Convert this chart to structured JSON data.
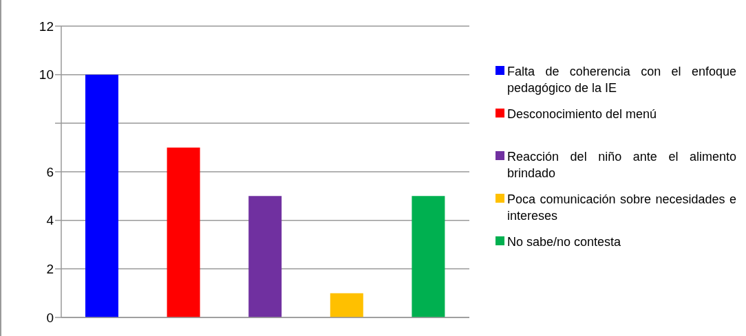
{
  "chart_data": {
    "type": "bar",
    "categories": [
      null,
      null,
      null,
      null,
      null
    ],
    "series": [
      {
        "name": "Falta de coherencia con el enfoque pedagógico de la IE",
        "color": "#0000ff",
        "values": [
          10,
          null,
          null,
          null,
          null
        ]
      },
      {
        "name": "Desconocimiento del menú",
        "color": "#ff0000",
        "values": [
          null,
          7,
          null,
          null,
          null
        ]
      },
      {
        "name": "Reacción del niño ante el alimento brindado",
        "color": "#7030a0",
        "values": [
          null,
          null,
          5,
          null,
          null
        ]
      },
      {
        "name": "Poca comunicación sobre necesidades e intereses",
        "color": "#ffc000",
        "values": [
          null,
          null,
          null,
          1,
          null
        ]
      },
      {
        "name": "No sabe/no contesta",
        "color": "#00b050",
        "values": [
          null,
          null,
          null,
          null,
          5
        ]
      }
    ],
    "ylim": [
      0,
      12
    ],
    "yticks": [
      0,
      2,
      4,
      6,
      {
        "value": 8,
        "label": null
      },
      10,
      12
    ],
    "grid": "y",
    "legend": "right",
    "tick_labels": "y"
  }
}
